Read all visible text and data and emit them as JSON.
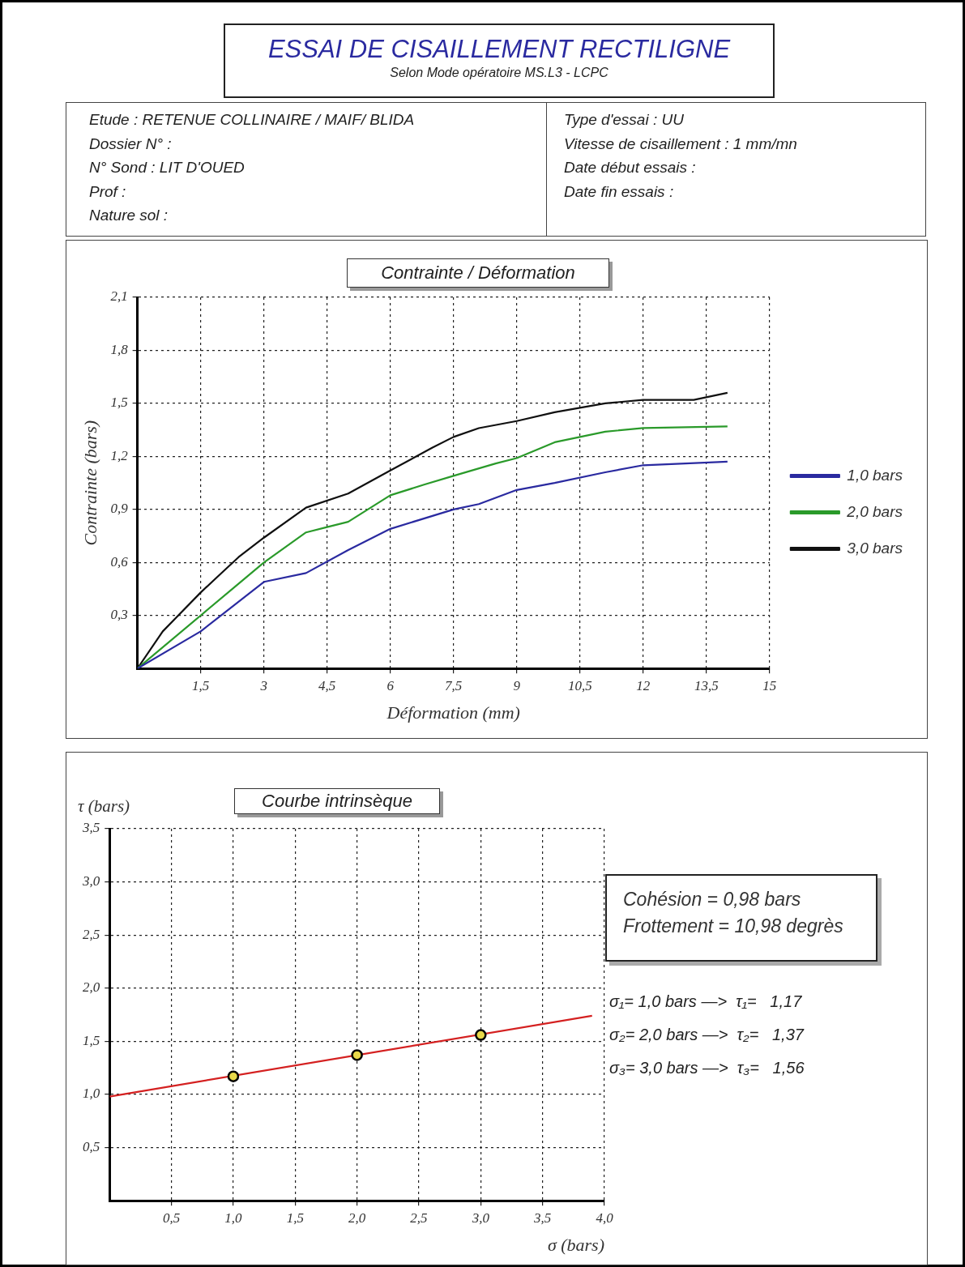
{
  "chart_data": [
    {
      "type": "other",
      "title": "ESSAI DE CISAILLEMENT RECTILIGNE",
      "subtitle": "Selon Mode opératoire MS.L3 - LCPC",
      "annotations": [
        "Etude : RETENUE COLLINAIRE  /  MAIF/ BLIDA",
        "Dossier N° :",
        "N° Sond : LIT D'OUED",
        "Prof :",
        "Nature sol :",
        "Type d'essai : UU",
        "Vitesse de cisaillement : 1 mm/mn",
        "Date début essais :",
        "Date fin essais :"
      ]
    },
    {
      "type": "line",
      "title": "Contrainte / Déformation",
      "xlabel": "Déformation (mm)",
      "ylabel": "Contrainte (bars)",
      "xlim": [
        0,
        15
      ],
      "ylim": [
        0,
        2.1
      ],
      "xticks": [
        {
          "value": 1.5,
          "label": "1,5"
        },
        3,
        {
          "value": 4.5,
          "label": "4,5"
        },
        6,
        {
          "value": 7.5,
          "label": "7,5"
        },
        9,
        {
          "value": 10.5,
          "label": "10,5"
        },
        12,
        {
          "value": 13.5,
          "label": "13,5"
        },
        15
      ],
      "yticks": [
        {
          "value": 0.3,
          "label": "0,3"
        },
        {
          "value": 0.6,
          "label": "0,6"
        },
        {
          "value": 0.9,
          "label": "0,9"
        },
        {
          "value": 1.2,
          "label": "1,2"
        },
        {
          "value": 1.5,
          "label": "1,5"
        },
        {
          "value": 1.8,
          "label": "1,8"
        },
        {
          "value": 2.1,
          "label": "2,1"
        }
      ],
      "grid": true,
      "legend": "right",
      "marker": "none",
      "line_style": "solid",
      "series": [
        {
          "name": "1,0 bars",
          "color": "#2a2aa0",
          "x": [
            0,
            1.5,
            3.0,
            4.0,
            5.0,
            6.0,
            7.5,
            8.1,
            9.0,
            9.9,
            11.1,
            12.0,
            14.0
          ],
          "values": [
            0,
            0.21,
            0.49,
            0.54,
            0.67,
            0.79,
            0.9,
            0.93,
            1.01,
            1.05,
            1.11,
            1.15,
            1.17
          ]
        },
        {
          "name": "2,0 bars",
          "color": "#2a9a2a",
          "x": [
            0,
            1.5,
            2.3,
            3.0,
            4.0,
            4.5,
            5.0,
            6.0,
            6.8,
            7.5,
            8.5,
            9.0,
            9.9,
            11.1,
            12.0,
            14.0
          ],
          "values": [
            0,
            0.3,
            0.46,
            0.6,
            0.77,
            0.8,
            0.83,
            0.98,
            1.04,
            1.09,
            1.16,
            1.19,
            1.28,
            1.34,
            1.36,
            1.37
          ]
        },
        {
          "name": "3,0 bars",
          "color": "#101010",
          "x": [
            0,
            0.6,
            1.5,
            1.95,
            2.4,
            3.0,
            4.0,
            5.0,
            6.0,
            7.0,
            7.5,
            8.1,
            9.0,
            9.9,
            11.1,
            12.0,
            13.2,
            14.0
          ],
          "values": [
            0,
            0.21,
            0.43,
            0.53,
            0.63,
            0.74,
            0.91,
            0.99,
            1.12,
            1.25,
            1.31,
            1.36,
            1.4,
            1.45,
            1.5,
            1.52,
            1.52,
            1.56
          ]
        }
      ]
    },
    {
      "type": "line",
      "title": "Courbe intrinsèque",
      "xlabel": "σ (bars)",
      "ylabel": "τ (bars)",
      "xlim": [
        0,
        4
      ],
      "ylim": [
        0,
        3.5
      ],
      "xticks": [
        {
          "value": 0.5,
          "label": "0,5"
        },
        {
          "value": 1,
          "label": "1,0"
        },
        {
          "value": 1.5,
          "label": "1,5"
        },
        {
          "value": 2,
          "label": "2,0"
        },
        {
          "value": 2.5,
          "label": "2,5"
        },
        {
          "value": 3,
          "label": "3,0"
        },
        {
          "value": 3.5,
          "label": "3,5"
        },
        {
          "value": 4,
          "label": "4,0"
        }
      ],
      "yticks": [
        {
          "value": 0.5,
          "label": "0,5"
        },
        {
          "value": 1,
          "label": "1,0"
        },
        {
          "value": 1.5,
          "label": "1,5"
        },
        {
          "value": 2,
          "label": "2,0"
        },
        {
          "value": 2.5,
          "label": "2,5"
        },
        {
          "value": 3,
          "label": "3,0"
        },
        {
          "value": 3.5,
          "label": "3,5"
        }
      ],
      "grid": true,
      "line_style": "solid",
      "annotations": [
        "Cohésion = 0,98 bars",
        "Frottement = 10,98 degrès",
        "σ₁= 1,0 bars —>  τ₁=   1,17",
        "σ₂= 2,0 bars —>  τ₂=   1,37",
        "σ₃= 3,0 bars —>  τ₃=   1,56"
      ],
      "series": [
        {
          "type": "line",
          "color": "#d42020",
          "x": [
            0,
            3.9
          ],
          "values": [
            0.98,
            1.74
          ]
        },
        {
          "type": "scatter",
          "marker": "circle",
          "color": "#e8d84a",
          "x": [
            1,
            2,
            3
          ],
          "values": [
            1.17,
            1.37,
            1.56
          ]
        }
      ]
    }
  ]
}
